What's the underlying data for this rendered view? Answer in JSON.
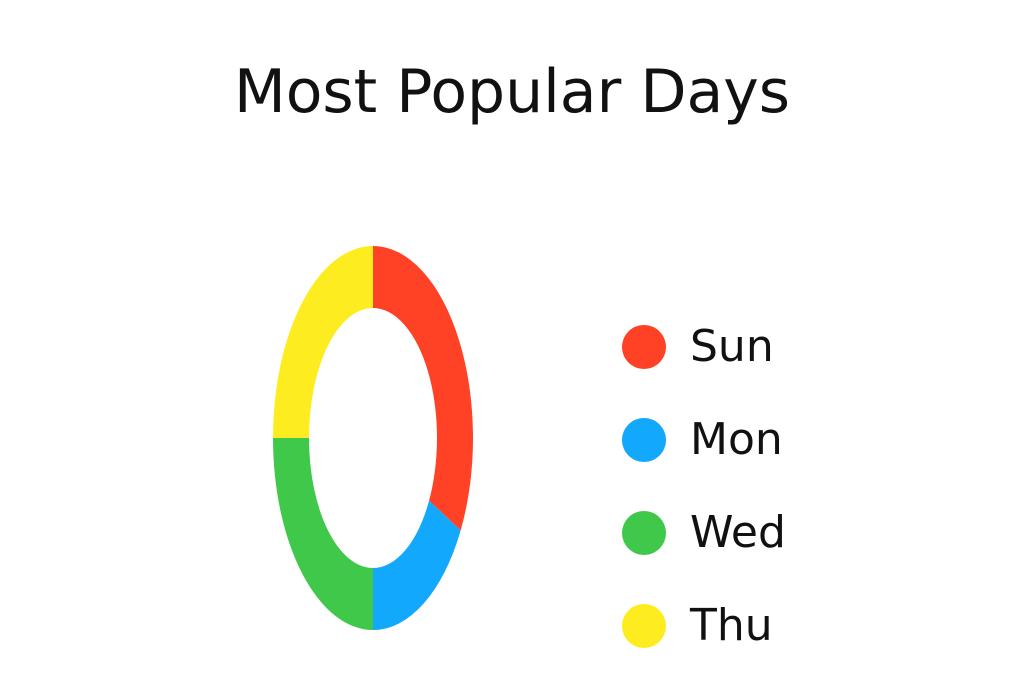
{
  "chart_data": {
    "type": "pie",
    "title": "Most Popular Days",
    "categories": [
      "Sun",
      "Mon",
      "Wed",
      "Thu"
    ],
    "values": [
      33,
      17,
      25,
      25
    ],
    "colors": [
      "#ff4125",
      "#12a8fc",
      "#40c84a",
      "#fded20"
    ],
    "legend": "right"
  }
}
